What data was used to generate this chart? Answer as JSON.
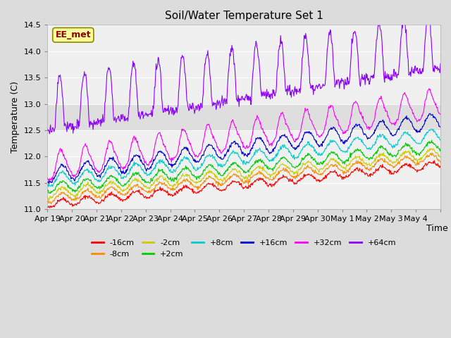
{
  "title": "Soil/Water Temperature Set 1",
  "xlabel": "Time",
  "ylabel": "Temperature (C)",
  "ylim": [
    11.0,
    14.5
  ],
  "annotation": "EE_met",
  "annotation_color": "#8B0000",
  "annotation_bg": "#FFFF99",
  "series": [
    {
      "label": "-16cm",
      "color": "#FF0000"
    },
    {
      "label": "-8cm",
      "color": "#FF8C00"
    },
    {
      "label": "-2cm",
      "color": "#CCCC00"
    },
    {
      "label": "+2cm",
      "color": "#00CC00"
    },
    {
      "label": "+8cm",
      "color": "#00CCCC"
    },
    {
      "label": "+16cm",
      "color": "#0000CC"
    },
    {
      "label": "+32cm",
      "color": "#FF00FF"
    },
    {
      "label": "+64cm",
      "color": "#8B00FF"
    }
  ],
  "x_tick_labels": [
    "Apr 19",
    "Apr 20",
    "Apr 21",
    "Apr 22",
    "Apr 23",
    "Apr 24",
    "Apr 25",
    "Apr 26",
    "Apr 27",
    "Apr 28",
    "Apr 29",
    "Apr 30",
    "May 1",
    "May 2",
    "May 3",
    "May 4"
  ],
  "shaded_band": [
    12.5,
    13.0
  ],
  "figsize": [
    6.4,
    4.8
  ],
  "dpi": 100
}
